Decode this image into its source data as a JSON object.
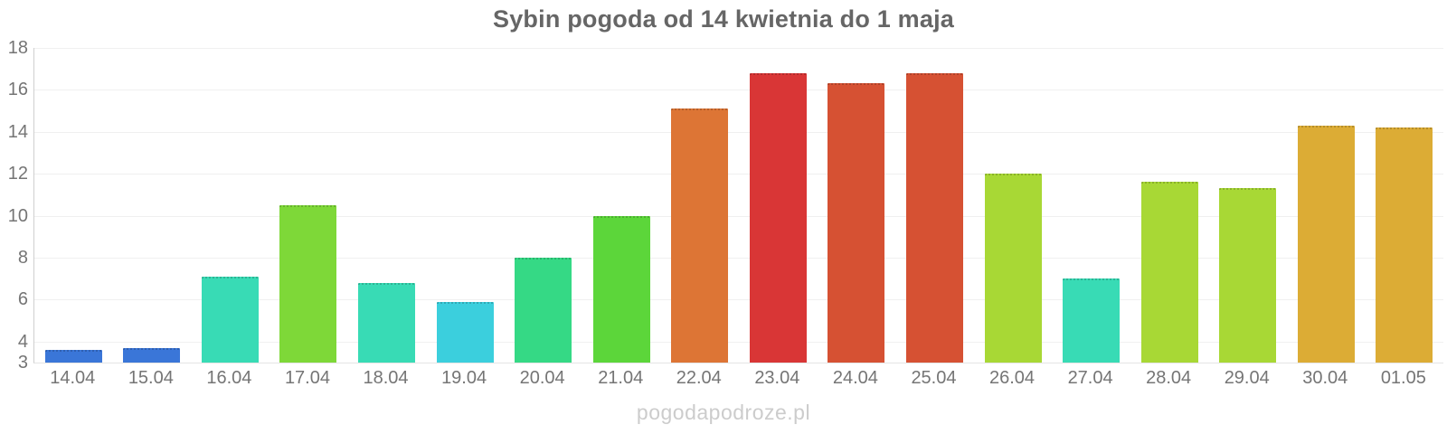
{
  "title": "Sybin pogoda od 14 kwietnia do 1 maja",
  "watermark": "pogodapodroze.pl",
  "colors": {
    "background": "#ffffff",
    "title_text": "#666666",
    "axis_label": "#757575",
    "gridline": "#ececec",
    "axis_line": "#cfcfcf",
    "watermark": "#cccccc"
  },
  "chart_data": {
    "type": "bar",
    "title": "Sybin pogoda od 14 kwietnia do 1 maja",
    "xlabel": "",
    "ylabel": "",
    "ylim": [
      3,
      18
    ],
    "yticks": [
      3,
      4,
      6,
      8,
      10,
      12,
      14,
      16,
      18
    ],
    "grid": true,
    "legend": false,
    "categories": [
      "14.04",
      "15.04",
      "16.04",
      "17.04",
      "18.04",
      "19.04",
      "20.04",
      "21.04",
      "22.04",
      "23.04",
      "24.04",
      "25.04",
      "26.04",
      "27.04",
      "28.04",
      "29.04",
      "30.04",
      "01.05"
    ],
    "values": [
      3.6,
      3.7,
      7.1,
      10.5,
      6.8,
      5.9,
      8.0,
      10.0,
      15.1,
      16.8,
      16.3,
      16.8,
      12.0,
      7.0,
      11.6,
      11.3,
      14.3,
      14.2
    ],
    "bar_colors": [
      "#3a76d8",
      "#3a76d8",
      "#38dbb5",
      "#7ed838",
      "#38dbb5",
      "#3bcfdd",
      "#35d985",
      "#5cd63a",
      "#dd7535",
      "#d93636",
      "#d65133",
      "#d65133",
      "#a8d835",
      "#38dbb5",
      "#a8d835",
      "#a8d835",
      "#dcac35",
      "#dcac35"
    ]
  }
}
